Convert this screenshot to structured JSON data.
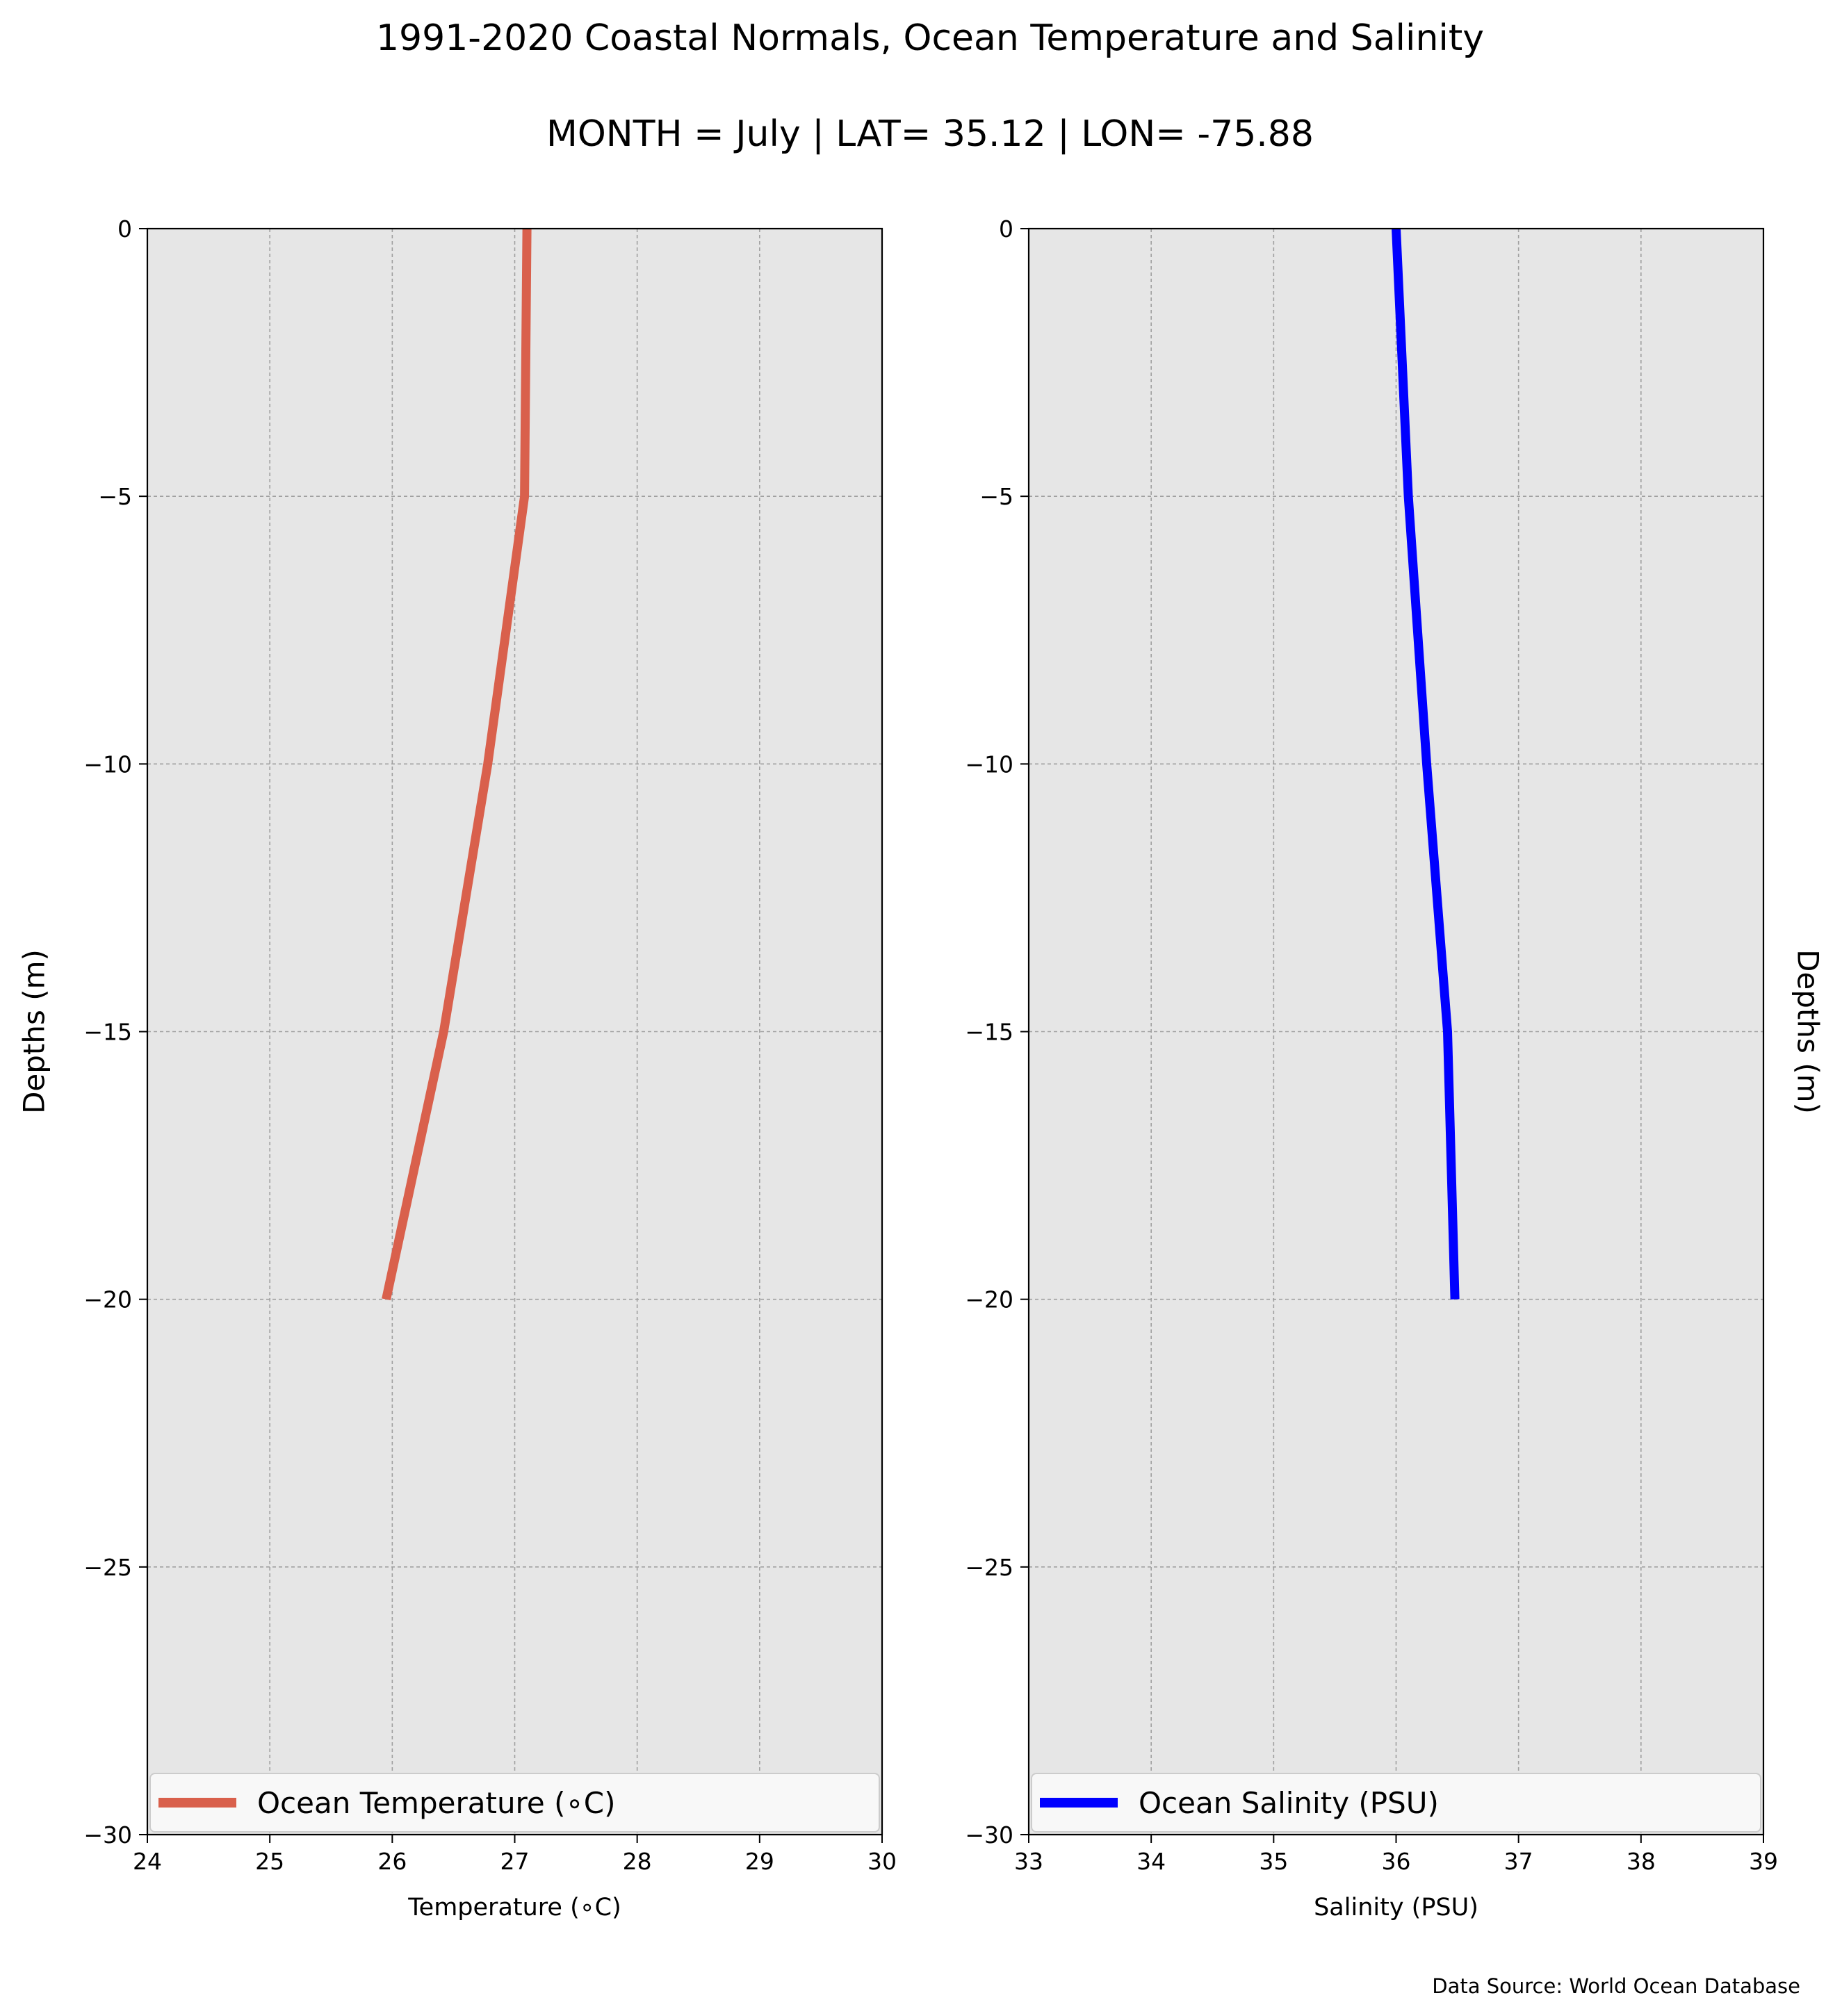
{
  "title": "1991-2020 Coastal Normals, Ocean Temperature and Salinity",
  "subtitle": "MONTH = July | LAT= 35.12 | LON= -75.88",
  "source_note": "Data Source: World Ocean Database",
  "colors": {
    "panel_background": "#e6e6e6",
    "grid": "#a0a0a0",
    "temperature_line": "#d9604c",
    "salinity_line": "#0000ff",
    "axis": "#000000"
  },
  "chart_data": [
    {
      "type": "line",
      "orientation": "depth-profile",
      "xlabel": "Temperature (∘C)",
      "ylabel": "Depths (m)",
      "ylabel_side": "left",
      "xlim": [
        24,
        30
      ],
      "ylim": [
        -30,
        0
      ],
      "xticks": [
        24,
        25,
        26,
        27,
        28,
        29,
        30
      ],
      "yticks": [
        0,
        -5,
        -10,
        -15,
        -20,
        -25,
        -30
      ],
      "ytick_labels": [
        "0",
        "−5",
        "−10",
        "−15",
        "−20",
        "−25",
        "−30"
      ],
      "grid": true,
      "legend_position": "lower center",
      "series": [
        {
          "name": "Ocean Temperature (∘C)",
          "color": "#d9604c",
          "x": [
            27.1,
            27.08,
            26.78,
            26.42,
            25.95
          ],
          "y": [
            0,
            -5,
            -10,
            -15,
            -20
          ]
        }
      ]
    },
    {
      "type": "line",
      "orientation": "depth-profile",
      "xlabel": "Salinity (PSU)",
      "ylabel": "Depths (m)",
      "ylabel_side": "right",
      "xlim": [
        33,
        39
      ],
      "ylim": [
        -30,
        0
      ],
      "xticks": [
        33,
        34,
        35,
        36,
        37,
        38,
        39
      ],
      "yticks": [
        0,
        -5,
        -10,
        -15,
        -20,
        -25,
        -30
      ],
      "ytick_labels": [
        "0",
        "−5",
        "−10",
        "−15",
        "−20",
        "−25",
        "−30"
      ],
      "grid": true,
      "legend_position": "lower center",
      "series": [
        {
          "name": "Ocean Salinity (PSU)",
          "color": "#0000ff",
          "x": [
            36.0,
            36.1,
            36.25,
            36.42,
            36.48
          ],
          "y": [
            0,
            -5,
            -10,
            -15,
            -20
          ]
        }
      ]
    }
  ]
}
